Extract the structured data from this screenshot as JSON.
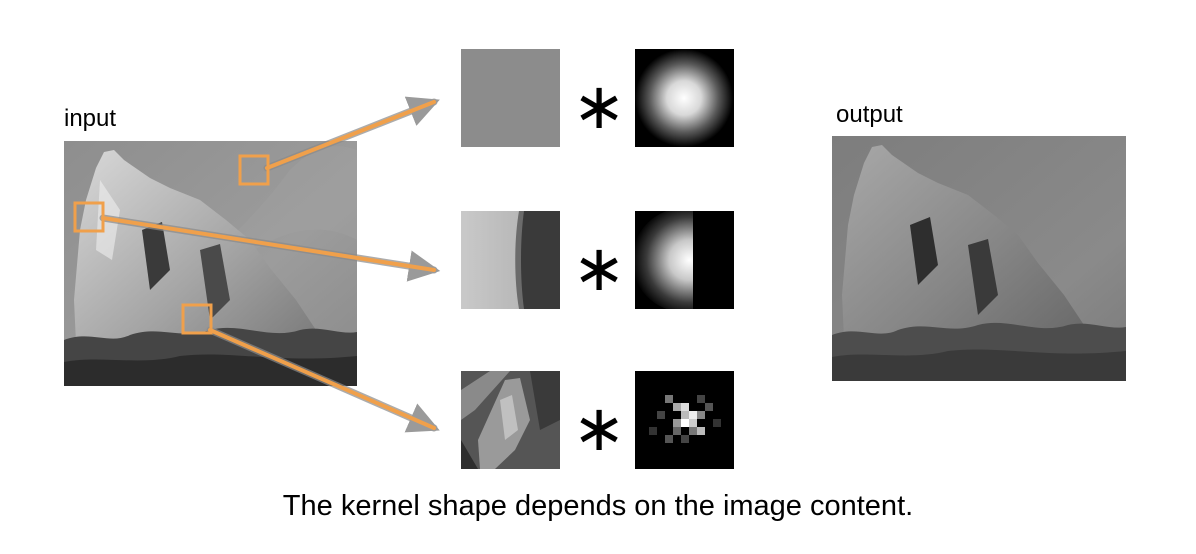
{
  "labels": {
    "input": "input",
    "output": "output",
    "caption": "The kernel shape depends on the image content."
  },
  "operator_symbol": "∗",
  "colors": {
    "accent": "#F0A04B",
    "accent_stroke": "#E08A2C",
    "background": "#ffffff"
  },
  "rows": [
    {
      "patch": "sky-patch",
      "kernel": "gaussian-kernel"
    },
    {
      "patch": "edge-patch",
      "kernel": "truncated-gaussian-kernel"
    },
    {
      "patch": "texture-patch",
      "kernel": "texture-kernel"
    }
  ]
}
